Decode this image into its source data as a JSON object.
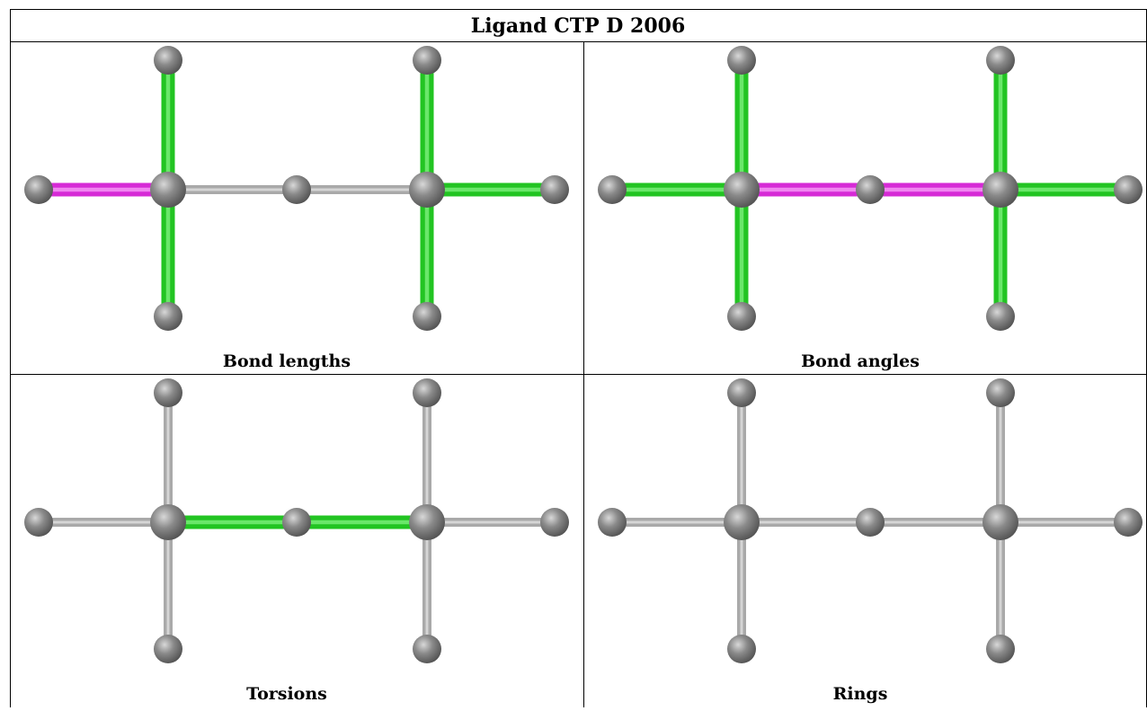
{
  "header": {
    "title": "Ligand CTP D 2006"
  },
  "panels": [
    {
      "label": "Bond lengths"
    },
    {
      "label": "Bond angles"
    },
    {
      "label": "Torsions"
    },
    {
      "label": "Rings"
    }
  ]
}
